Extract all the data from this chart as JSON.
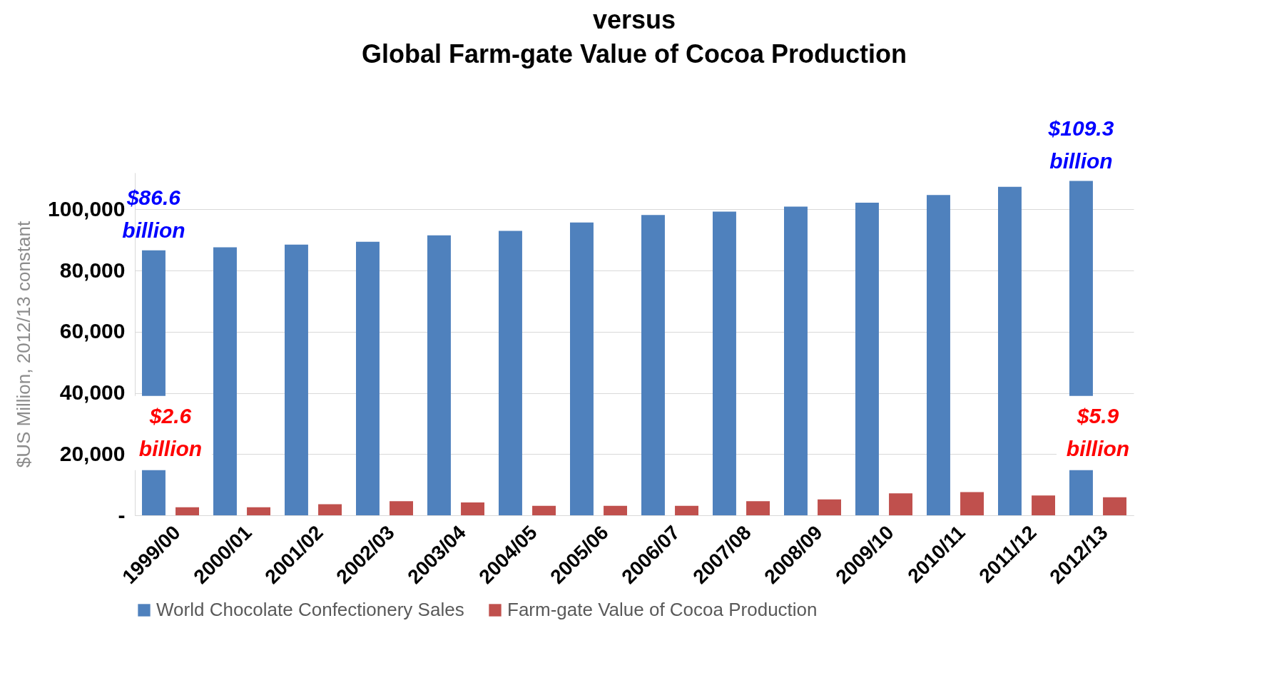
{
  "chart_data": {
    "type": "bar",
    "title": "versus\nGlobal Farm-gate Value of Cocoa Production",
    "ylabel": "$US Million, 2012/13 constant",
    "categories": [
      "1999/00",
      "2000/01",
      "2001/02",
      "2002/03",
      "2003/04",
      "2004/05",
      "2005/06",
      "2006/07",
      "2007/08",
      "2008/09",
      "2009/10",
      "2010/11",
      "2011/12",
      "2012/13"
    ],
    "series": [
      {
        "name": "World Chocolate Confectionery Sales",
        "color": "#4f81bd",
        "values": [
          86600,
          87600,
          88500,
          89400,
          91500,
          93000,
          95700,
          98200,
          99300,
          100900,
          102200,
          104700,
          107400,
          109300
        ]
      },
      {
        "name": "Farm-gate Value of Cocoa Production",
        "color": "#c0504d",
        "values": [
          2600,
          2600,
          3600,
          4600,
          4200,
          3100,
          3100,
          3100,
          4600,
          5200,
          7200,
          7600,
          6500,
          5900
        ]
      }
    ],
    "ylim": [
      0,
      112000
    ],
    "yticks": [
      {
        "value": 0,
        "label": "-"
      },
      {
        "value": 20000,
        "label": "20,000"
      },
      {
        "value": 40000,
        "label": "40,000"
      },
      {
        "value": 60000,
        "label": "60,000"
      },
      {
        "value": 80000,
        "label": "80,000"
      },
      {
        "value": 100000,
        "label": "100,000"
      }
    ],
    "grid": "y",
    "legend": "bottom",
    "annotations": [
      {
        "text": "$86.6 billion",
        "x": "1999/00",
        "y": 86600
      },
      {
        "text": "$109.3 billion",
        "x": "2012/13",
        "y": 109300
      },
      "$2.6 billion",
      "$5.9 billion"
    ]
  }
}
